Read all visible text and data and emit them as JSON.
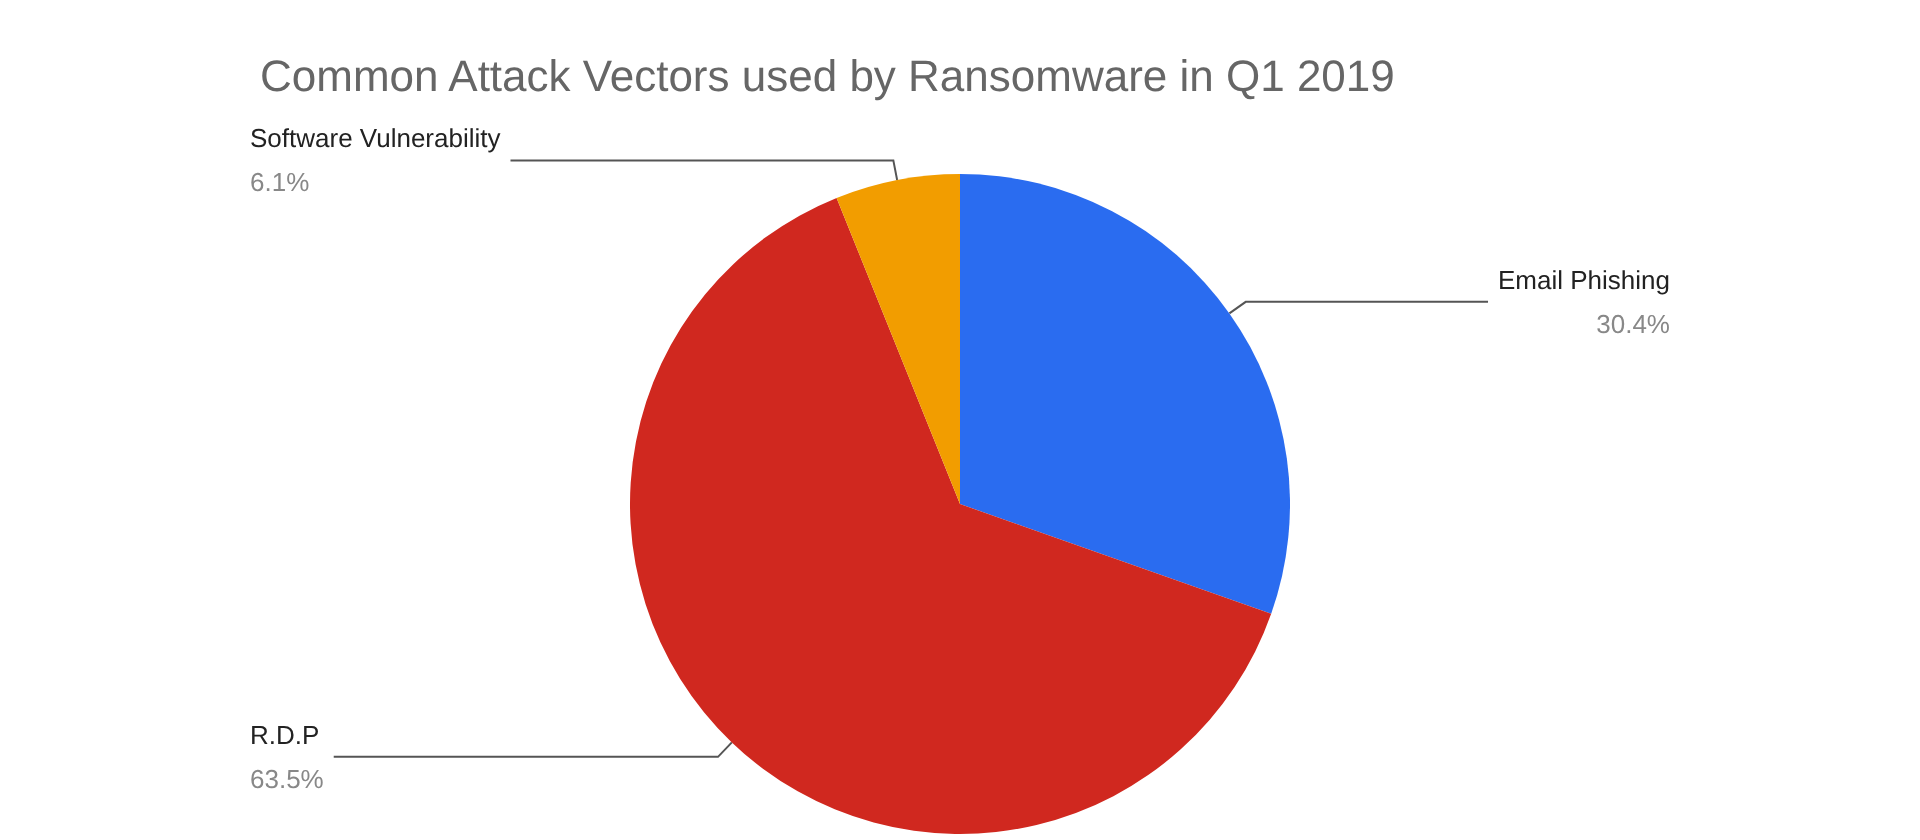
{
  "chart_data": {
    "type": "pie",
    "title": "Common Attack Vectors used by Ransomware in Q1 2019",
    "categories": [
      "Email Phishing",
      "R.D.P",
      "Software Vulnerability"
    ],
    "values": [
      30.4,
      63.5,
      6.1
    ],
    "colors": [
      "#2a6cf0",
      "#d0281f",
      "#f29d00"
    ],
    "value_labels": [
      "30.4%",
      "63.5%",
      "6.1%"
    ],
    "legend": false
  }
}
